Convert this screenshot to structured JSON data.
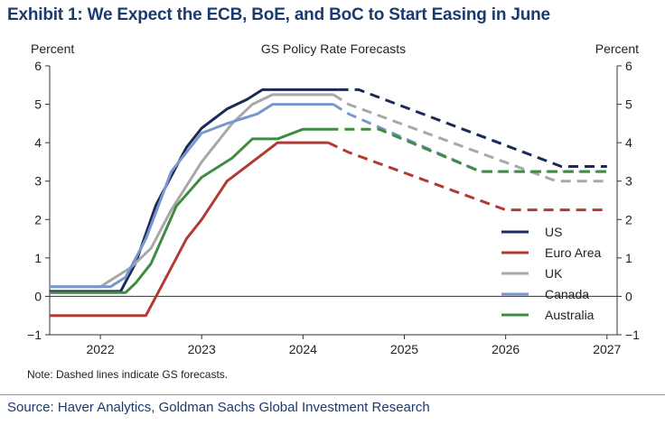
{
  "title": "Exhibit 1: We Expect the ECB, BoE, and BoC to Start Easing in June",
  "source": "Source: Haver Analytics, Goldman Sachs Global Investment Research",
  "chart_data": {
    "type": "line",
    "title": "GS Policy Rate Forecasts",
    "ylabel_left": "Percent",
    "ylabel_right": "Percent",
    "note": "Note: Dashed lines indicate GS forecasts.",
    "ylim": [
      -1,
      6
    ],
    "yticks": [
      -1,
      0,
      1,
      2,
      3,
      4,
      5,
      6
    ],
    "xlim": [
      2021.5,
      2027.1
    ],
    "xticks": [
      2022,
      2023,
      2024,
      2025,
      2026,
      2027
    ],
    "legend_position": "lower-right",
    "grid": false,
    "series": [
      {
        "name": "US",
        "color": "#1b2a59",
        "points": [
          [
            2021.5,
            0.13
          ],
          [
            2022.2,
            0.13
          ],
          [
            2022.25,
            0.38
          ],
          [
            2022.35,
            0.88
          ],
          [
            2022.45,
            1.63
          ],
          [
            2022.55,
            2.38
          ],
          [
            2022.7,
            3.13
          ],
          [
            2022.85,
            3.88
          ],
          [
            2023.0,
            4.38
          ],
          [
            2023.25,
            4.88
          ],
          [
            2023.45,
            5.13
          ],
          [
            2023.6,
            5.38
          ],
          [
            2024.35,
            5.38
          ]
        ],
        "forecast": [
          [
            2024.35,
            5.38
          ],
          [
            2024.55,
            5.38
          ],
          [
            2026.55,
            3.38
          ],
          [
            2027.0,
            3.38
          ]
        ]
      },
      {
        "name": "Euro Area",
        "color": "#b23a32",
        "points": [
          [
            2021.5,
            -0.5
          ],
          [
            2022.45,
            -0.5
          ],
          [
            2022.6,
            0.25
          ],
          [
            2022.75,
            1.0
          ],
          [
            2022.85,
            1.5
          ],
          [
            2023.0,
            2.0
          ],
          [
            2023.25,
            3.0
          ],
          [
            2023.5,
            3.5
          ],
          [
            2023.75,
            4.0
          ],
          [
            2024.25,
            4.0
          ]
        ],
        "forecast": [
          [
            2024.25,
            4.0
          ],
          [
            2024.45,
            3.75
          ],
          [
            2026.0,
            2.25
          ],
          [
            2027.0,
            2.25
          ]
        ]
      },
      {
        "name": "UK",
        "color": "#a8a8a8",
        "points": [
          [
            2021.5,
            0.25
          ],
          [
            2022.0,
            0.25
          ],
          [
            2022.3,
            0.75
          ],
          [
            2022.5,
            1.25
          ],
          [
            2022.7,
            2.25
          ],
          [
            2023.0,
            3.5
          ],
          [
            2023.3,
            4.5
          ],
          [
            2023.5,
            5.0
          ],
          [
            2023.7,
            5.25
          ],
          [
            2024.3,
            5.25
          ]
        ],
        "forecast": [
          [
            2024.3,
            5.25
          ],
          [
            2024.45,
            5.0
          ],
          [
            2026.5,
            3.0
          ],
          [
            2027.0,
            3.0
          ]
        ]
      },
      {
        "name": "Canada",
        "color": "#7a96cc",
        "points": [
          [
            2021.5,
            0.25
          ],
          [
            2022.1,
            0.25
          ],
          [
            2022.25,
            0.5
          ],
          [
            2022.45,
            1.5
          ],
          [
            2022.7,
            3.25
          ],
          [
            2023.0,
            4.25
          ],
          [
            2023.25,
            4.5
          ],
          [
            2023.55,
            4.75
          ],
          [
            2023.7,
            5.0
          ],
          [
            2024.3,
            5.0
          ]
        ],
        "forecast": [
          [
            2024.3,
            5.0
          ],
          [
            2024.45,
            4.75
          ],
          [
            2025.75,
            3.25
          ],
          [
            2027.0,
            3.25
          ]
        ]
      },
      {
        "name": "Australia",
        "color": "#3f8c40",
        "points": [
          [
            2021.5,
            0.1
          ],
          [
            2022.25,
            0.1
          ],
          [
            2022.35,
            0.35
          ],
          [
            2022.5,
            0.85
          ],
          [
            2022.75,
            2.35
          ],
          [
            2023.0,
            3.1
          ],
          [
            2023.3,
            3.6
          ],
          [
            2023.5,
            4.1
          ],
          [
            2023.75,
            4.1
          ],
          [
            2024.0,
            4.35
          ],
          [
            2024.25,
            4.35
          ]
        ],
        "forecast": [
          [
            2024.25,
            4.35
          ],
          [
            2024.75,
            4.35
          ],
          [
            2025.75,
            3.25
          ],
          [
            2027.0,
            3.25
          ]
        ]
      }
    ]
  }
}
